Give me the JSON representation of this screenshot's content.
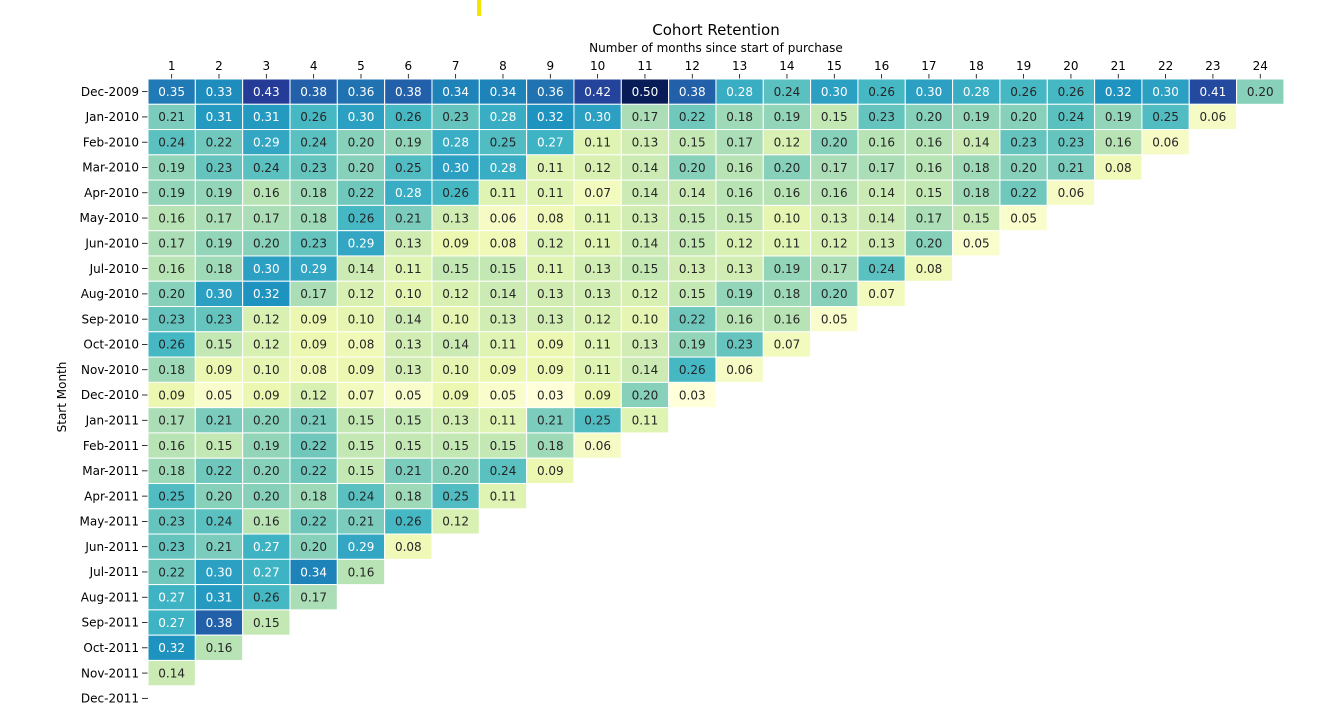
{
  "chart_data": {
    "type": "heatmap",
    "title": "Cohort Retention",
    "xlabel": "Number of months since start of purchase",
    "ylabel": "Start Month",
    "x_ticks": [
      "1",
      "2",
      "3",
      "4",
      "5",
      "6",
      "7",
      "8",
      "9",
      "10",
      "11",
      "12",
      "13",
      "14",
      "15",
      "16",
      "17",
      "18",
      "19",
      "20",
      "21",
      "22",
      "23",
      "24"
    ],
    "y_ticks": [
      "Dec-2009",
      "Jan-2010",
      "Feb-2010",
      "Mar-2010",
      "Apr-2010",
      "May-2010",
      "Jun-2010",
      "Jul-2010",
      "Aug-2010",
      "Sep-2010",
      "Oct-2010",
      "Nov-2010",
      "Dec-2010",
      "Jan-2011",
      "Feb-2011",
      "Mar-2011",
      "Apr-2011",
      "May-2011",
      "Jun-2011",
      "Jul-2011",
      "Aug-2011",
      "Sep-2011",
      "Oct-2011",
      "Nov-2011",
      "Dec-2011"
    ],
    "colormap": "YlGnBu",
    "value_range": [
      0.03,
      0.5
    ],
    "grid": false,
    "legend": "none",
    "values": [
      [
        0.35,
        0.33,
        0.43,
        0.38,
        0.36,
        0.38,
        0.34,
        0.34,
        0.36,
        0.42,
        0.5,
        0.38,
        0.28,
        0.24,
        0.3,
        0.26,
        0.3,
        0.28,
        0.26,
        0.26,
        0.32,
        0.3,
        0.41,
        0.2
      ],
      [
        0.21,
        0.31,
        0.31,
        0.26,
        0.3,
        0.26,
        0.23,
        0.28,
        0.32,
        0.3,
        0.17,
        0.22,
        0.18,
        0.19,
        0.15,
        0.23,
        0.2,
        0.19,
        0.2,
        0.24,
        0.19,
        0.25,
        0.06
      ],
      [
        0.24,
        0.22,
        0.29,
        0.24,
        0.2,
        0.19,
        0.28,
        0.25,
        0.27,
        0.11,
        0.13,
        0.15,
        0.17,
        0.12,
        0.2,
        0.16,
        0.16,
        0.14,
        0.23,
        0.23,
        0.16,
        0.06
      ],
      [
        0.19,
        0.23,
        0.24,
        0.23,
        0.2,
        0.25,
        0.3,
        0.28,
        0.11,
        0.12,
        0.14,
        0.2,
        0.16,
        0.2,
        0.17,
        0.17,
        0.16,
        0.18,
        0.2,
        0.21,
        0.08
      ],
      [
        0.19,
        0.19,
        0.16,
        0.18,
        0.22,
        0.28,
        0.26,
        0.11,
        0.11,
        0.07,
        0.14,
        0.14,
        0.16,
        0.16,
        0.16,
        0.14,
        0.15,
        0.18,
        0.22,
        0.06
      ],
      [
        0.16,
        0.17,
        0.17,
        0.18,
        0.26,
        0.21,
        0.13,
        0.06,
        0.08,
        0.11,
        0.13,
        0.15,
        0.15,
        0.1,
        0.13,
        0.14,
        0.17,
        0.15,
        0.05
      ],
      [
        0.17,
        0.19,
        0.2,
        0.23,
        0.29,
        0.13,
        0.09,
        0.08,
        0.12,
        0.11,
        0.14,
        0.15,
        0.12,
        0.11,
        0.12,
        0.13,
        0.2,
        0.05
      ],
      [
        0.16,
        0.18,
        0.3,
        0.29,
        0.14,
        0.11,
        0.15,
        0.15,
        0.11,
        0.13,
        0.15,
        0.13,
        0.13,
        0.19,
        0.17,
        0.24,
        0.08
      ],
      [
        0.2,
        0.3,
        0.32,
        0.17,
        0.12,
        0.1,
        0.12,
        0.14,
        0.13,
        0.13,
        0.12,
        0.15,
        0.19,
        0.18,
        0.2,
        0.07
      ],
      [
        0.23,
        0.23,
        0.12,
        0.09,
        0.1,
        0.14,
        0.1,
        0.13,
        0.13,
        0.12,
        0.1,
        0.22,
        0.16,
        0.16,
        0.05
      ],
      [
        0.26,
        0.15,
        0.12,
        0.09,
        0.08,
        0.13,
        0.14,
        0.11,
        0.09,
        0.11,
        0.13,
        0.19,
        0.23,
        0.07
      ],
      [
        0.18,
        0.09,
        0.1,
        0.08,
        0.09,
        0.13,
        0.1,
        0.09,
        0.09,
        0.11,
        0.14,
        0.26,
        0.06
      ],
      [
        0.09,
        0.05,
        0.09,
        0.12,
        0.07,
        0.05,
        0.09,
        0.05,
        0.03,
        0.09,
        0.2,
        0.03
      ],
      [
        0.17,
        0.21,
        0.2,
        0.21,
        0.15,
        0.15,
        0.13,
        0.11,
        0.21,
        0.25,
        0.11
      ],
      [
        0.16,
        0.15,
        0.19,
        0.22,
        0.15,
        0.15,
        0.15,
        0.15,
        0.18,
        0.06
      ],
      [
        0.18,
        0.22,
        0.2,
        0.22,
        0.15,
        0.21,
        0.2,
        0.24,
        0.09
      ],
      [
        0.25,
        0.2,
        0.2,
        0.18,
        0.24,
        0.18,
        0.25,
        0.11
      ],
      [
        0.23,
        0.24,
        0.16,
        0.22,
        0.21,
        0.26,
        0.12
      ],
      [
        0.23,
        0.21,
        0.27,
        0.2,
        0.29,
        0.08
      ],
      [
        0.22,
        0.3,
        0.27,
        0.34,
        0.16
      ],
      [
        0.27,
        0.31,
        0.26,
        0.17
      ],
      [
        0.27,
        0.38,
        0.15
      ],
      [
        0.32,
        0.16
      ],
      [
        0.14
      ],
      []
    ]
  }
}
